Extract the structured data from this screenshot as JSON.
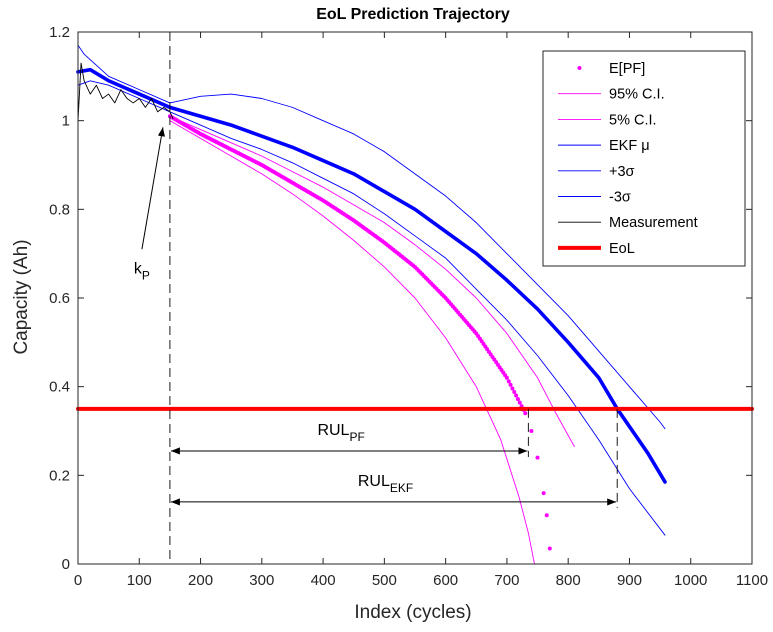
{
  "chart_data": {
    "type": "line",
    "title": "EoL Prediction Trajectory",
    "xlabel": "Index (cycles)",
    "ylabel": "Capacity (Ah)",
    "xlim": [
      0,
      1100
    ],
    "ylim": [
      0,
      1.2
    ],
    "xticks": [
      0,
      100,
      200,
      300,
      400,
      500,
      600,
      700,
      800,
      900,
      1000,
      1100
    ],
    "yticks": [
      0,
      0.2,
      0.4,
      0.6,
      0.8,
      1,
      1.2
    ],
    "ytick_labels": [
      "0",
      "0.2",
      "0.4",
      "0.6",
      "0.8",
      "1",
      "1.2"
    ],
    "grid": false,
    "legend_position": "top-right",
    "series": [
      {
        "name": "E[PF]",
        "color": "#ff00ff",
        "style": "dots",
        "x": [
          150,
          200,
          250,
          300,
          350,
          400,
          450,
          500,
          550,
          600,
          650,
          700,
          730,
          740,
          750,
          760,
          765,
          770
        ],
        "y": [
          1.01,
          0.97,
          0.935,
          0.9,
          0.86,
          0.82,
          0.775,
          0.725,
          0.67,
          0.6,
          0.52,
          0.42,
          0.34,
          0.3,
          0.24,
          0.16,
          0.11,
          0.035
        ]
      },
      {
        "name": "95% C.I.",
        "color": "#ff00ff",
        "style": "thin",
        "x": [
          150,
          200,
          250,
          300,
          350,
          400,
          450,
          500,
          550,
          600,
          650,
          700,
          750,
          780,
          810
        ],
        "y": [
          1.01,
          0.98,
          0.95,
          0.92,
          0.885,
          0.85,
          0.81,
          0.77,
          0.72,
          0.665,
          0.6,
          0.52,
          0.42,
          0.34,
          0.265
        ]
      },
      {
        "name": "5% C.I.",
        "color": "#ff00ff",
        "style": "thin",
        "x": [
          150,
          200,
          250,
          300,
          350,
          400,
          450,
          500,
          550,
          600,
          650,
          690,
          720,
          735,
          745
        ],
        "y": [
          1.0,
          0.96,
          0.92,
          0.88,
          0.835,
          0.785,
          0.73,
          0.67,
          0.6,
          0.51,
          0.4,
          0.28,
          0.15,
          0.07,
          0.0
        ]
      },
      {
        "name": "EKF μ",
        "color": "#0000ff",
        "style": "thick",
        "x": [
          0,
          20,
          50,
          100,
          150,
          200,
          250,
          300,
          350,
          400,
          450,
          500,
          550,
          600,
          650,
          700,
          750,
          800,
          850,
          880,
          900,
          930,
          958
        ],
        "y": [
          1.11,
          1.115,
          1.09,
          1.06,
          1.03,
          1.01,
          0.99,
          0.965,
          0.94,
          0.91,
          0.88,
          0.84,
          0.8,
          0.75,
          0.7,
          0.64,
          0.575,
          0.5,
          0.42,
          0.35,
          0.31,
          0.25,
          0.185
        ]
      },
      {
        "name": "+3σ",
        "color": "#0000ff",
        "style": "thin",
        "x": [
          0,
          10,
          50,
          100,
          150,
          200,
          250,
          300,
          350,
          400,
          450,
          500,
          550,
          600,
          650,
          700,
          750,
          800,
          850,
          900,
          950,
          958
        ],
        "y": [
          1.17,
          1.15,
          1.1,
          1.07,
          1.04,
          1.055,
          1.06,
          1.05,
          1.03,
          1.0,
          0.97,
          0.93,
          0.88,
          0.83,
          0.77,
          0.7,
          0.63,
          0.56,
          0.48,
          0.4,
          0.32,
          0.305
        ]
      },
      {
        "name": "-3σ",
        "color": "#0000ff",
        "style": "thin",
        "x": [
          0,
          20,
          50,
          100,
          150,
          200,
          250,
          300,
          350,
          400,
          450,
          500,
          550,
          600,
          650,
          700,
          750,
          800,
          850,
          900,
          958
        ],
        "y": [
          1.08,
          1.09,
          1.08,
          1.05,
          1.02,
          0.99,
          0.96,
          0.935,
          0.905,
          0.87,
          0.835,
          0.79,
          0.74,
          0.69,
          0.62,
          0.55,
          0.47,
          0.38,
          0.28,
          0.17,
          0.065
        ]
      },
      {
        "name": "Measurement",
        "color": "#000000",
        "style": "thin",
        "x": [
          0,
          5,
          10,
          20,
          30,
          40,
          50,
          60,
          70,
          80,
          90,
          100,
          110,
          120,
          130,
          140,
          150,
          155
        ],
        "y": [
          1.0,
          1.13,
          1.09,
          1.06,
          1.08,
          1.05,
          1.06,
          1.04,
          1.07,
          1.05,
          1.04,
          1.05,
          1.03,
          1.05,
          1.02,
          1.03,
          1.02,
          1.005
        ]
      },
      {
        "name": "EoL",
        "color": "#ff0000",
        "style": "eol",
        "x": [
          0,
          1100
        ],
        "y": [
          0.35,
          0.35
        ]
      }
    ],
    "annotations": {
      "kp": {
        "main": "k",
        "sub": "P",
        "x": 150
      },
      "rul_pf": {
        "main": "RUL",
        "sub": "PF",
        "x_start": 150,
        "x_end": 735,
        "y": 0.255
      },
      "rul_ekf": {
        "main": "RUL",
        "sub": "EKF",
        "x_start": 150,
        "x_end": 880,
        "y": 0.14
      }
    }
  }
}
